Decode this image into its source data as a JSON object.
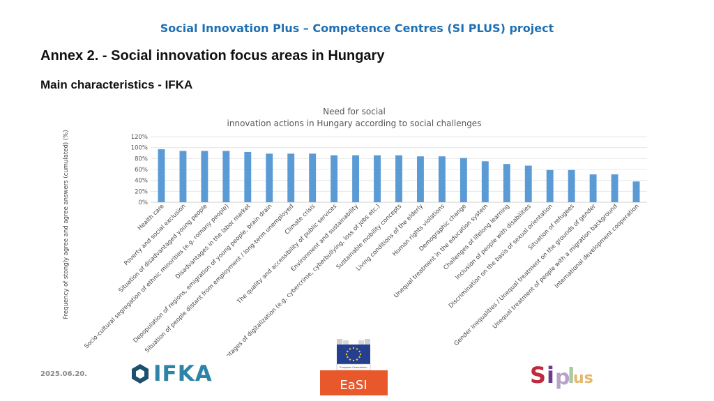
{
  "header": {
    "title": "Social Innovation Plus – Competence Centres (SI PLUS) project"
  },
  "annex_title": "Annex 2. - Social innovation focus areas in Hungary",
  "subtitle": "Main characteristics - IFKA",
  "footer": {
    "date": "2025.06.20.",
    "ifka_logo_text": "IFKA",
    "easi_logo_text": "EaSI",
    "easi_logo_small": "European Commission",
    "siplus_logo_text": "SI PLUS"
  },
  "colors": {
    "bar": "#5b9bd5",
    "header": "#1f6fb2",
    "ifka": "#2d84a7",
    "easi": "#e8582a"
  },
  "chart_data": {
    "type": "bar",
    "title_lines": [
      "Need for social",
      "innovation actions in Hungary according to social challenges"
    ],
    "ylabel": "Frequency of stongly agree and agree answers (cumulated) (%)",
    "ylim": [
      0,
      120
    ],
    "yticks": [
      "0%",
      "20%",
      "40%",
      "60%",
      "80%",
      "100%",
      "120%"
    ],
    "grid": true,
    "categories": [
      "Health care",
      "Poverty and social exclusion",
      "Situation of disadvantaged young people",
      "Socio-cultural segregation of ethnic minorities (e.g. romany people)",
      "Disadvantages in the labor market",
      "Depopulation of regions, emigration of young people, brain drain",
      "Situation of people distant from employment / long-term unemployed",
      "Climate crisis",
      "The quality and accessibility of public services",
      "Environment and sustainability",
      "Disadvantages of digitalization (e.g. cybercrime, cyberbullying, loss of jobs etc.)",
      "Sustainable mobility concepts",
      "Living conditions of the elderly",
      "Human rights violations",
      "Demographic change",
      "Unequal treatment in the education system",
      "Challenges of lifelong learning",
      "Inclusion of people with disabilities",
      "Discrimination on the basis of sexual orientation",
      "Situation of refugees",
      "Gender Inequalities / Unequal treatment on the grounds of gender",
      "Unequal treatment of people with a migration background",
      "International development cooperation"
    ],
    "values": [
      97,
      94,
      94,
      94,
      92,
      89,
      89,
      89,
      86,
      86,
      86,
      86,
      84,
      84,
      81,
      75,
      70,
      67,
      59,
      59,
      51,
      51,
      38
    ]
  }
}
